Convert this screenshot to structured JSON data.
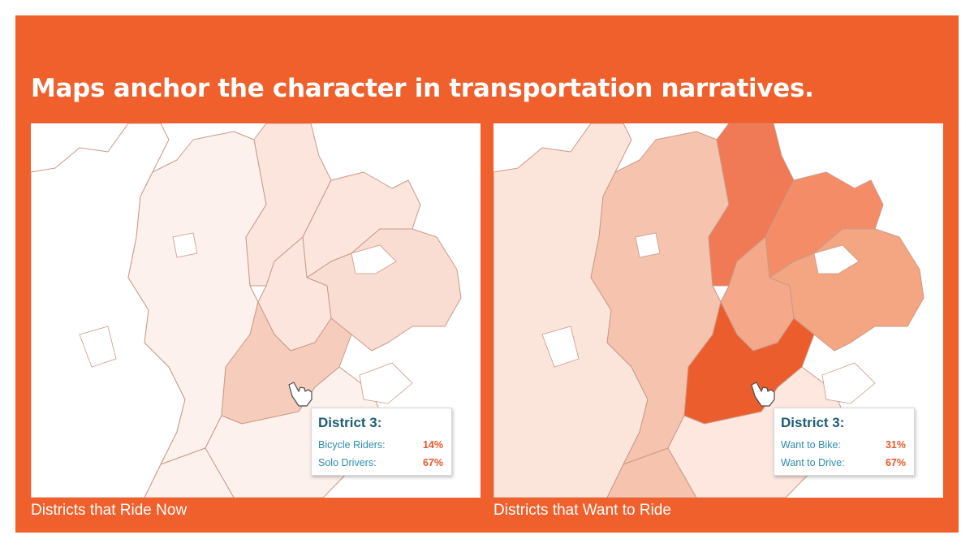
{
  "headline": "Maps anchor the character in transportation narratives.",
  "colors": {
    "frame": "#f0602c",
    "popup_title": "#1d5d77",
    "popup_label": "#2b8cb0",
    "popup_value": "#e8572a",
    "district_outline": "#c99a88"
  },
  "maps": [
    {
      "caption": "Districts that Ride Now",
      "popup": {
        "title": "District 3:",
        "rows": [
          {
            "label": "Bicycle Riders:",
            "value": "14%"
          },
          {
            "label": "Solo Drivers:",
            "value": "67%"
          }
        ]
      },
      "district_fills": {
        "far_west": "#ffffff",
        "west": "#fdf1ed",
        "north_center": "#fbe5dd",
        "north_east": "#fbe5dd",
        "east": "#f9ddd2",
        "center_east": "#fbe5dd",
        "district_3": "#f6cdbd",
        "south_center": "#fdf1ed",
        "south_west": "#fdf1ed"
      },
      "pointer_icon": "hand-pointer-icon"
    },
    {
      "caption": "Districts that Want to Ride",
      "popup": {
        "title": "District 3:",
        "rows": [
          {
            "label": "Want to Bike:",
            "value": "31%"
          },
          {
            "label": "Want to Drive:",
            "value": "67%"
          }
        ]
      },
      "district_fills": {
        "far_west": "#fbe4da",
        "west": "#f5c3ae",
        "north_center": "#f07a55",
        "north_east": "#f48c68",
        "east": "#f4a582",
        "center_east": "#f5a88a",
        "district_3": "#ec5d2e",
        "south_center": "#fde7de",
        "south_west": "#f5c3ae"
      },
      "pointer_icon": "hand-pointer-icon"
    }
  ]
}
